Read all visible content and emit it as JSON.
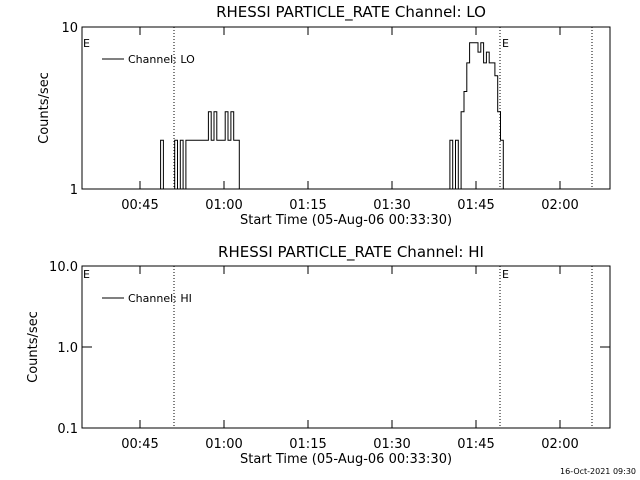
{
  "page": {
    "timestamp": "16-Oct-2021 09:30"
  },
  "chart_data": [
    {
      "type": "line",
      "title": "RHESSI PARTICLE_RATE Channel: LO",
      "xlabel": "Start Time (05-Aug-06 00:33:30)",
      "ylabel": "Counts/sec",
      "yscale": "log",
      "xlim": [
        "00:35:30",
        "02:09:30"
      ],
      "ylim": [
        1,
        10
      ],
      "x_ticks": [
        "00:45",
        "01:00",
        "01:15",
        "01:30",
        "01:45",
        "02:00"
      ],
      "y_ticks": [
        "1",
        "10"
      ],
      "legend": {
        "position": "top-left",
        "entries": [
          "Channel: LO"
        ]
      },
      "markers": [
        {
          "time": "00:50:30",
          "label": "E"
        },
        {
          "time": "01:52:30",
          "label": "E"
        },
        {
          "time": "02:08:00",
          "label": ""
        }
      ],
      "series": [
        {
          "x": [
            "00:49:00",
            "00:49:30",
            "00:50:00",
            "00:50:30",
            "00:51:00",
            "00:51:30",
            "00:52:00",
            "00:52:30",
            "00:53:00",
            "00:53:30",
            "00:54:00",
            "00:54:30",
            "00:55:00",
            "00:55:30",
            "00:56:00",
            "00:56:30",
            "00:57:00",
            "00:57:30",
            "00:58:00",
            "00:58:30",
            "00:59:00",
            "00:59:30",
            "01:00:00",
            "01:00:30",
            "01:01:00",
            "01:01:30",
            "01:02:00",
            "01:02:30",
            "01:03:00",
            "01:03:30",
            "01:04:00",
            "01:40:30",
            "01:41:00",
            "01:41:30",
            "01:42:00",
            "01:42:30",
            "01:43:00",
            "01:43:30",
            "01:44:00",
            "01:44:30",
            "01:45:00",
            "01:45:30",
            "01:46:00",
            "01:46:30",
            "01:47:00",
            "01:47:30",
            "01:48:00",
            "01:48:30",
            "01:49:00",
            "01:49:30",
            "01:50:00",
            "01:50:30",
            "01:51:00"
          ],
          "y": [
            1,
            2,
            1,
            1,
            1,
            1,
            2,
            1,
            2,
            1,
            2,
            2,
            2,
            2,
            2,
            2,
            2,
            2,
            3,
            2,
            3,
            2,
            2,
            2,
            3,
            2,
            3,
            2,
            2,
            1,
            1,
            1,
            2,
            1,
            2,
            1,
            3,
            4,
            6,
            8,
            8,
            8,
            7,
            8,
            6,
            7,
            6,
            6,
            5,
            3,
            2,
            1,
            1
          ]
        }
      ]
    },
    {
      "type": "line",
      "title": "RHESSI PARTICLE_RATE Channel: HI",
      "xlabel": "Start Time (05-Aug-06 00:33:30)",
      "ylabel": "Counts/sec",
      "yscale": "log",
      "xlim": [
        "00:35:30",
        "02:09:30"
      ],
      "ylim": [
        0.1,
        10
      ],
      "x_ticks": [
        "00:45",
        "01:00",
        "01:15",
        "01:30",
        "01:45",
        "02:00"
      ],
      "y_ticks": [
        "0.1",
        "1.0",
        "10.0"
      ],
      "legend": {
        "position": "top-left",
        "entries": [
          "Channel: HI"
        ]
      },
      "markers": [
        {
          "time": "00:50:30",
          "label": "E"
        },
        {
          "time": "01:52:30",
          "label": "E"
        },
        {
          "time": "02:08:00",
          "label": ""
        }
      ],
      "series": [
        {
          "x": [],
          "y": []
        }
      ]
    }
  ]
}
